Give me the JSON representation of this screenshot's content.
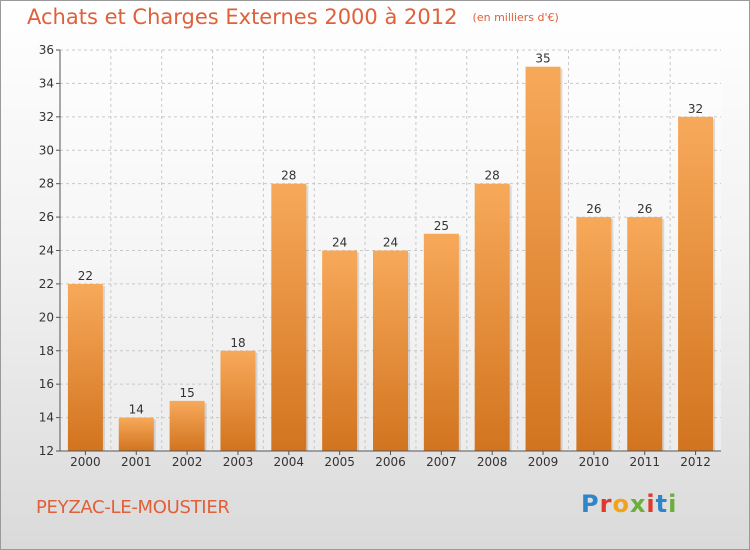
{
  "header": {
    "title": "Achats et Charges Externes 2000 à 2012",
    "subtitle": "(en milliers d'€)"
  },
  "footer": {
    "commune": "PEYZAC-LE-MOUSTIER",
    "logo_letters": [
      "P",
      "r",
      "o",
      "x",
      "i",
      "t",
      "i"
    ]
  },
  "colors": {
    "accent": "#e0603a",
    "bar_top": "#f7a95a",
    "bar_bottom": "#d2741f",
    "grid": "#c8c8c8"
  },
  "chart_data": {
    "type": "bar",
    "categories": [
      "2000",
      "2001",
      "2002",
      "2003",
      "2004",
      "2005",
      "2006",
      "2007",
      "2008",
      "2009",
      "2010",
      "2011",
      "2012"
    ],
    "values": [
      22,
      14,
      15,
      18,
      28,
      24,
      24,
      25,
      28,
      35,
      26,
      26,
      32
    ],
    "ylim": [
      12,
      36
    ],
    "yticks": [
      12,
      14,
      16,
      18,
      20,
      22,
      24,
      26,
      28,
      30,
      32,
      34,
      36
    ],
    "grid": true,
    "title": "Achats et Charges Externes 2000 à 2012",
    "subtitle": "(en milliers d'€)",
    "xlabel": "",
    "ylabel": ""
  }
}
